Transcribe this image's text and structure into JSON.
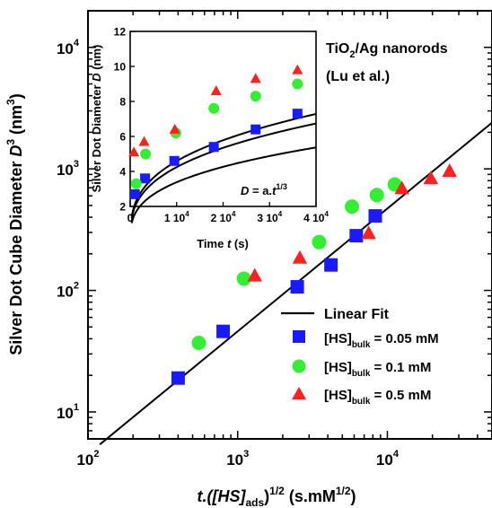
{
  "chart_data": [
    {
      "type": "scatter",
      "xscale": "log",
      "yscale": "log",
      "xlabel_main": "t.([HS]",
      "xlabel_sub": "ads",
      "xlabel_sup1": "1/2",
      "xlabel_unit": " (s.mM",
      "xlabel_sup2": "1/2",
      "xlabel_close": ")",
      "ylabel_main": "Silver Dot Cube Diameter ",
      "ylabel_italic": "D",
      "ylabel_sup": "3",
      "ylabel_unit": " (nm",
      "ylabel_unit_sup": "3",
      "ylabel_close": ")",
      "xlim": [
        100,
        50000
      ],
      "ylim": [
        6,
        20000
      ],
      "xticks": [
        {
          "value": 100,
          "base": "10",
          "exp": "2"
        },
        {
          "value": 1000,
          "base": "10",
          "exp": "3"
        },
        {
          "value": 10000,
          "base": "10",
          "exp": "4"
        }
      ],
      "yticks": [
        {
          "value": 10,
          "base": "10",
          "exp": "1"
        },
        {
          "value": 100,
          "base": "10",
          "exp": "2"
        },
        {
          "value": 1000,
          "base": "10",
          "exp": "3"
        },
        {
          "value": 10000,
          "base": "10",
          "exp": "4"
        }
      ],
      "fit": {
        "name": "Linear Fit",
        "x": [
          120,
          50000
        ],
        "y": [
          5.4,
          2400
        ],
        "color": "#000000"
      },
      "series": [
        {
          "name_main": "[HS]",
          "name_sub": "bulk",
          "name_value": " = 0.05 mM",
          "marker": "square",
          "color": "#1a1aff",
          "x": [
            400,
            800,
            2500,
            4200,
            6200,
            8300
          ],
          "y": [
            19,
            46,
            107,
            162,
            282,
            410
          ]
        },
        {
          "name_main": "[HS]",
          "name_sub": "bulk",
          "name_value": " = 0.1 mM",
          "marker": "circle",
          "color": "#33ee33",
          "x": [
            550,
            1100,
            3500,
            5800,
            8500,
            11200
          ],
          "y": [
            37,
            125,
            250,
            490,
            610,
            745
          ]
        },
        {
          "name_main": "[HS]",
          "name_sub": "bulk",
          "name_value": " = 0.5 mM",
          "marker": "triangle",
          "color": "#ff2020",
          "x": [
            1300,
            2600,
            7500,
            12500,
            19500,
            26000
          ],
          "y": [
            132,
            185,
            295,
            690,
            835,
            960
          ]
        }
      ],
      "annotation_title": "TiO",
      "annotation_title_sub": "2",
      "annotation_title_rest": "/Ag nanorods",
      "annotation_source": "(Lu et al.)"
    },
    {
      "type": "scatter",
      "xlabel_main": "Time ",
      "xlabel_italic": "t",
      "xlabel_unit": " (s)",
      "ylabel_main": "Silver Dot Diameter ",
      "ylabel_italic": "D",
      "ylabel_unit": " (nm)",
      "xlim": [
        0,
        40000
      ],
      "ylim": [
        2,
        12
      ],
      "xticks": [
        {
          "value": 0,
          "label": "0",
          "exp": ""
        },
        {
          "value": 10000,
          "label": "1",
          "exp": "4"
        },
        {
          "value": 20000,
          "label": "2",
          "exp": "4"
        },
        {
          "value": 30000,
          "label": "3",
          "exp": "4"
        },
        {
          "value": 40000,
          "label": "4",
          "exp": "4"
        }
      ],
      "yticks": [
        2,
        4,
        6,
        8,
        10,
        12
      ],
      "formula_lhs": "D",
      "formula_mid": " = a.",
      "formula_t": "t",
      "formula_exp": "1/3",
      "fits": [
        {
          "a": 0.157
        },
        {
          "a": 0.197
        },
        {
          "a": 0.213
        }
      ],
      "series": [
        {
          "marker": "square",
          "color": "#1a1aff",
          "x": [
            1000,
            3200,
            9500,
            18000,
            27000,
            36000
          ],
          "y": [
            2.7,
            3.6,
            4.6,
            5.4,
            6.4,
            7.3
          ]
        },
        {
          "marker": "circle",
          "color": "#33ee33",
          "x": [
            1300,
            3300,
            9800,
            18000,
            27000,
            36000
          ],
          "y": [
            3.3,
            5.0,
            6.2,
            7.6,
            8.3,
            9.0
          ]
        },
        {
          "marker": "triangle",
          "color": "#ff2020",
          "x": [
            800,
            3000,
            9600,
            18500,
            27000,
            36000
          ],
          "y": [
            5.1,
            5.7,
            6.4,
            8.6,
            9.3,
            9.8
          ]
        }
      ]
    }
  ]
}
